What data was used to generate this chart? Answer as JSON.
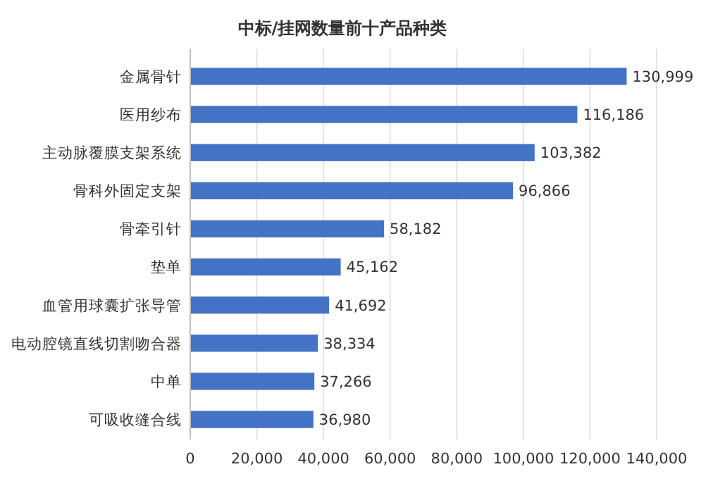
{
  "chart_data": {
    "type": "bar",
    "orientation": "horizontal",
    "title": "中标/挂网数量前十产品种类",
    "categories": [
      "金属骨针",
      "医用纱布",
      "主动脉覆膜支架系统",
      "骨科外固定支架",
      "骨牵引针",
      "垫单",
      "血管用球囊扩张导管",
      "电动腔镜直线切割吻合器",
      "中单",
      "可吸收缝合线"
    ],
    "values": [
      130999,
      116186,
      103382,
      96866,
      58182,
      45162,
      41692,
      38334,
      37266,
      36980
    ],
    "value_labels": [
      "130,999",
      "116,186",
      "103,382",
      "96,866",
      "58,182",
      "45,162",
      "41,692",
      "38,334",
      "37,266",
      "36,980"
    ],
    "color": "#4472c4",
    "grid": "x",
    "xlim": [
      0,
      140000
    ],
    "xticks": [
      0,
      {
        "value": 20000,
        "label": "20,000"
      },
      {
        "value": 40000,
        "label": "40,000"
      },
      {
        "value": 60000,
        "label": "60,000"
      },
      {
        "value": 80000,
        "label": "80,000"
      },
      {
        "value": 100000,
        "label": "100,000"
      },
      {
        "value": 120000,
        "label": "120,000"
      },
      {
        "value": 140000,
        "label": "140,000"
      }
    ]
  }
}
